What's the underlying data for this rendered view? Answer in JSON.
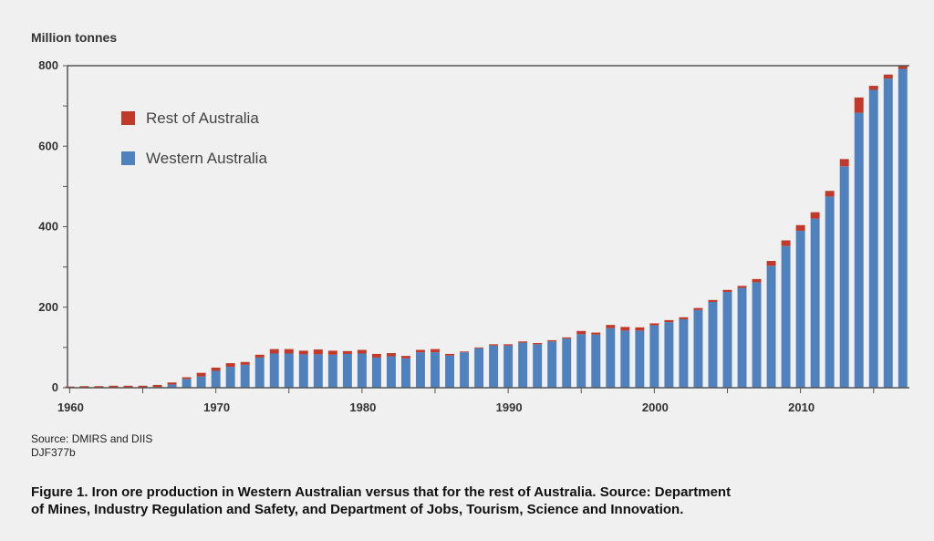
{
  "chart_data": {
    "type": "bar",
    "stacked": true,
    "title": "",
    "ylabel": "Million tonnes",
    "xlabel": "",
    "ylim": [
      0,
      800
    ],
    "yticks": [
      0,
      200,
      400,
      600,
      800
    ],
    "xticks": [
      1960,
      1970,
      1980,
      1990,
      2000,
      2010
    ],
    "grid": false,
    "legend_position": "top-left",
    "categories": [
      1960,
      1961,
      1962,
      1963,
      1964,
      1965,
      1966,
      1967,
      1968,
      1969,
      1970,
      1971,
      1972,
      1973,
      1974,
      1975,
      1976,
      1977,
      1978,
      1979,
      1980,
      1981,
      1982,
      1983,
      1984,
      1985,
      1986,
      1987,
      1988,
      1989,
      1990,
      1991,
      1992,
      1993,
      1994,
      1995,
      1996,
      1997,
      1998,
      1999,
      2000,
      2001,
      2002,
      2003,
      2004,
      2005,
      2006,
      2007,
      2008,
      2009,
      2010,
      2011,
      2012,
      2013,
      2014,
      2015,
      2016,
      2017
    ],
    "series": [
      {
        "name": "Western Australia",
        "color": "#4f81bd",
        "values": [
          0,
          0,
          0,
          0,
          0,
          0,
          2,
          8,
          22,
          28,
          42,
          52,
          57,
          75,
          85,
          85,
          83,
          83,
          82,
          84,
          85,
          75,
          78,
          73,
          88,
          88,
          80,
          88,
          98,
          105,
          105,
          112,
          108,
          115,
          122,
          133,
          132,
          148,
          142,
          142,
          155,
          163,
          170,
          193,
          213,
          238,
          248,
          262,
          303,
          352,
          390,
          420,
          475,
          550,
          683,
          740,
          768,
          792
        ]
      },
      {
        "name": "Rest of Australia",
        "color": "#c0392b",
        "values": [
          3,
          4,
          4,
          5,
          5,
          5,
          5,
          5,
          4,
          9,
          8,
          9,
          7,
          7,
          11,
          11,
          9,
          12,
          10,
          7,
          9,
          9,
          8,
          6,
          6,
          8,
          4,
          2,
          2,
          3,
          3,
          3,
          3,
          3,
          3,
          8,
          5,
          8,
          9,
          8,
          5,
          5,
          5,
          5,
          5,
          5,
          5,
          8,
          12,
          14,
          14,
          16,
          14,
          18,
          38,
          10,
          10,
          8
        ]
      }
    ]
  },
  "figure": {
    "y_unit_label": "Million tonnes",
    "source_line": "Source: DMIRS and DIIS",
    "code_line": "DJF377b",
    "caption_line1": "Figure 1. Iron ore production in Western Australian versus that for the rest of Australia. Source: Department",
    "caption_line2": "of Mines, Industry Regulation and Safety, and Department of Jobs, Tourism, Science and Innovation."
  }
}
